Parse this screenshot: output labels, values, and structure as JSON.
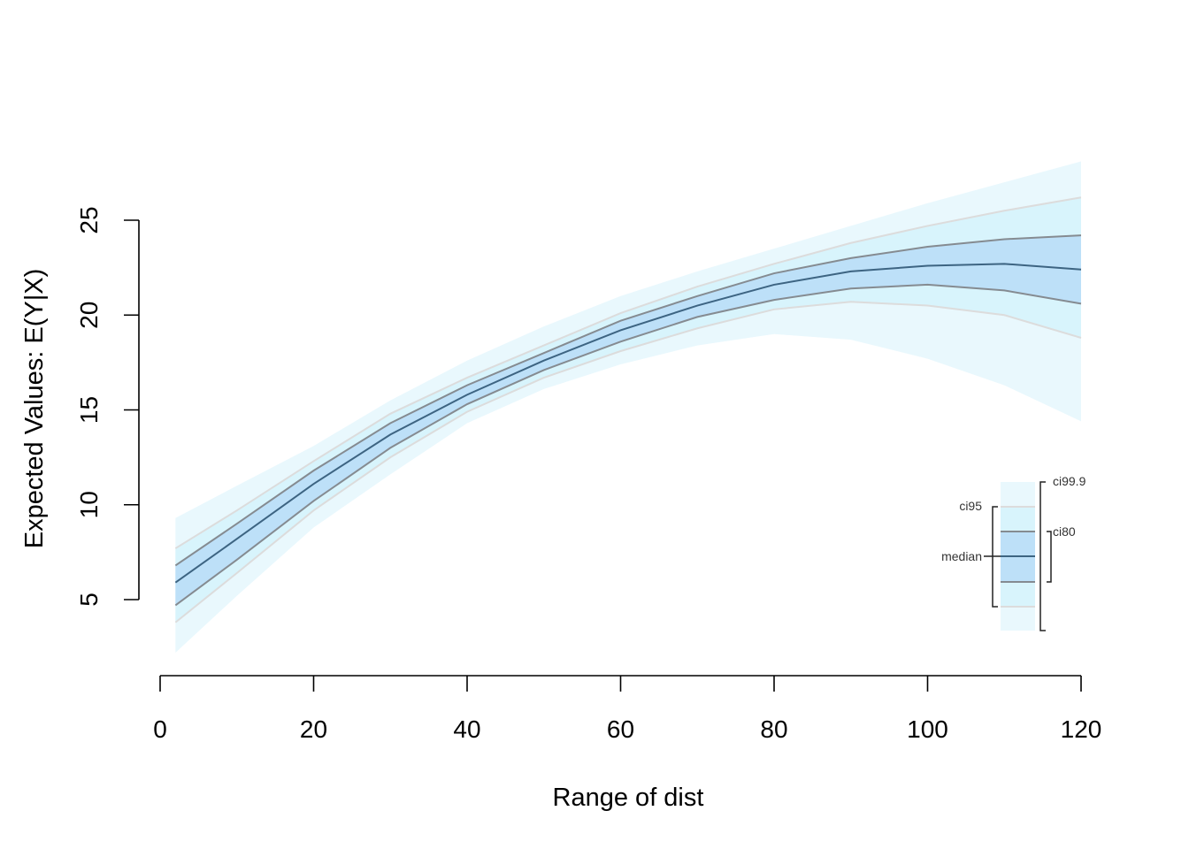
{
  "chart_data": {
    "type": "area",
    "xlabel": "Range of dist",
    "ylabel": "Expected Values: E(Y|X)",
    "xlim": [
      0,
      120
    ],
    "ylim": [
      1.5,
      27
    ],
    "x_ticks": [
      0,
      20,
      40,
      60,
      80,
      100,
      120
    ],
    "y_ticks": [
      5,
      10,
      15,
      20,
      25
    ],
    "grid": false,
    "x": [
      2,
      10,
      20,
      30,
      40,
      50,
      60,
      70,
      80,
      90,
      100,
      110,
      120
    ],
    "series": [
      {
        "name": "median",
        "values": [
          5.9,
          8.2,
          11.1,
          13.7,
          15.8,
          17.6,
          19.2,
          20.5,
          21.6,
          22.3,
          22.6,
          22.7,
          22.4
        ]
      },
      {
        "name": "ci80",
        "lower": [
          4.7,
          7.1,
          10.2,
          13.0,
          15.3,
          17.1,
          18.6,
          19.9,
          20.8,
          21.4,
          21.6,
          21.3,
          20.6
        ],
        "upper": [
          6.8,
          9.0,
          11.8,
          14.3,
          16.3,
          18.0,
          19.7,
          21.0,
          22.2,
          23.0,
          23.6,
          24.0,
          24.2
        ]
      },
      {
        "name": "ci95",
        "lower": [
          3.8,
          6.4,
          9.7,
          12.5,
          14.9,
          16.7,
          18.1,
          19.3,
          20.3,
          20.7,
          20.5,
          20.0,
          18.8
        ],
        "upper": [
          7.7,
          9.7,
          12.3,
          14.8,
          16.7,
          18.4,
          20.1,
          21.5,
          22.7,
          23.8,
          24.7,
          25.5,
          26.2
        ]
      },
      {
        "name": "ci99.9",
        "lower": [
          2.2,
          5.2,
          8.8,
          11.6,
          14.3,
          16.1,
          17.4,
          18.4,
          19.0,
          18.7,
          17.7,
          16.3,
          14.4
        ],
        "upper": [
          9.3,
          11.0,
          13.1,
          15.5,
          17.6,
          19.4,
          21.0,
          22.3,
          23.5,
          24.7,
          25.9,
          27.0,
          28.1
        ]
      }
    ],
    "legend": {
      "placement": "bottom-right",
      "labels": [
        "ci99.9",
        "ci95",
        "ci80",
        "median"
      ]
    },
    "colors": {
      "ci99.9": "#e9f8fd",
      "ci95": "#d8f4fc",
      "ci80": "#bde0f8",
      "median_line": "#3d6482",
      "ci80_line": "#858b91",
      "ci95_line": "#dcdcdc"
    }
  }
}
